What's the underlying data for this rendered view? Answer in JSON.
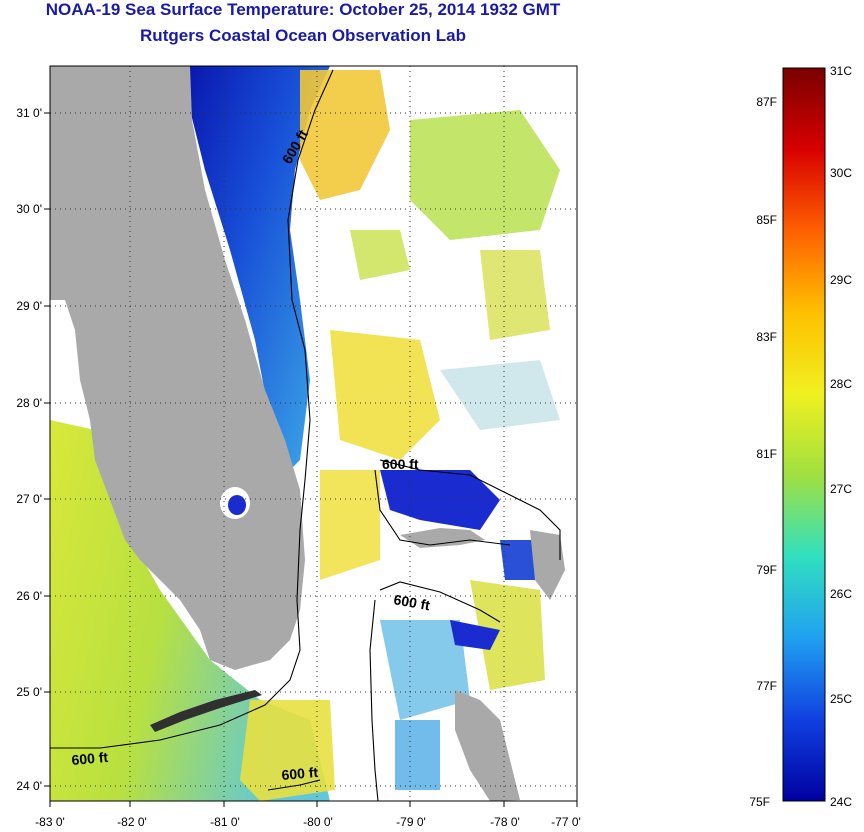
{
  "header": {
    "title": "NOAA-19 Sea Surface Temperature:  October 25, 2014 1932 GMT",
    "subtitle": "Rutgers Coastal Ocean Observation Lab"
  },
  "map": {
    "lat_ticks": [
      {
        "label": "31 0'",
        "lat": 31
      },
      {
        "label": "30 0'",
        "lat": 30
      },
      {
        "label": "29 0'",
        "lat": 29
      },
      {
        "label": "28 0'",
        "lat": 28
      },
      {
        "label": "27 0'",
        "lat": 27
      },
      {
        "label": "26 0'",
        "lat": 26
      },
      {
        "label": "25 0'",
        "lat": 25
      },
      {
        "label": "24 0'",
        "lat": 24
      }
    ],
    "lon_ticks": [
      {
        "label": "-83 0'",
        "lon": -83
      },
      {
        "label": "-82 0'",
        "lon": -82
      },
      {
        "label": "-81 0'",
        "lon": -81
      },
      {
        "label": "-80 0'",
        "lon": -80
      },
      {
        "label": "-79 0'",
        "lon": -79
      },
      {
        "label": "-78 0'",
        "lon": -78
      },
      {
        "label": "-77 0'",
        "lon": -77
      }
    ],
    "contour_labels": [
      "600 ft",
      "600 ft",
      "600 ft",
      "600 ft",
      "600 ft"
    ],
    "colors": {
      "land": "#a9a9a9",
      "cloud": "#ffffff",
      "warm": "#f2e23a",
      "mid": "#a8e04a",
      "cool": "#3aa0e8",
      "cold": "#1a2bd0"
    }
  },
  "colorbar": {
    "celsius": [
      "31C",
      "30C",
      "29C",
      "28C",
      "27C",
      "26C",
      "25C",
      "24C"
    ],
    "fahrenheit": [
      "87F",
      "85F",
      "83F",
      "81F",
      "79F",
      "77F",
      "75F"
    ],
    "stops": [
      "#7a0000",
      "#d80000",
      "#ff6000",
      "#ffc000",
      "#f0f020",
      "#a0e040",
      "#30e0c0",
      "#20a0f0",
      "#1040e0",
      "#0000a0"
    ]
  }
}
